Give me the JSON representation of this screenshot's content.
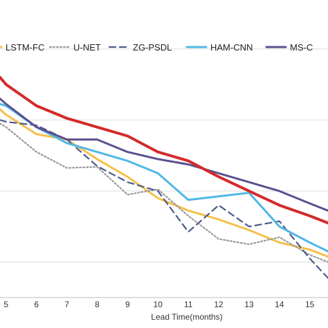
{
  "chart_data": {
    "type": "line",
    "title": "",
    "xlabel": "Lead Time(months)",
    "ylabel": "",
    "x": [
      5,
      6,
      7,
      8,
      9,
      10,
      11,
      12,
      13,
      14,
      15
    ],
    "xlim": [
      4.8,
      15.6
    ],
    "ylim": [
      0.2,
      0.96
    ],
    "grid": true,
    "legend_position": "top",
    "series": [
      {
        "name": "LSTM-FC",
        "color": "#f5c04a",
        "dash": "solid",
        "x": [
          4.8,
          5,
          6,
          7,
          8,
          9,
          10,
          11,
          12,
          13,
          14,
          15,
          15.6
        ],
        "y": [
          0.73,
          0.715,
          0.66,
          0.645,
          0.59,
          0.54,
          0.48,
          0.445,
          0.42,
          0.39,
          0.355,
          0.335,
          0.315
        ]
      },
      {
        "name": "U-NET",
        "color": "#999999",
        "dash": "dotted",
        "x": [
          4.8,
          5,
          6,
          7,
          8,
          9,
          10,
          11,
          12,
          13,
          14,
          15,
          15.6
        ],
        "y": [
          0.69,
          0.68,
          0.61,
          0.565,
          0.568,
          0.49,
          0.505,
          0.43,
          0.365,
          0.35,
          0.37,
          0.32,
          0.3
        ]
      },
      {
        "name": "ZG-PSDL",
        "color": "#4a5a8a",
        "dash": "dashed",
        "x": [
          4.8,
          5,
          6,
          7,
          8,
          9,
          10,
          11,
          12,
          13,
          14,
          15,
          15.6
        ],
        "y": [
          0.7,
          0.695,
          0.685,
          0.645,
          0.57,
          0.525,
          0.5,
          0.385,
          0.46,
          0.4,
          0.415,
          0.31,
          0.255
        ]
      },
      {
        "name": "HAM-CNN",
        "color": "#4fb8e6",
        "dash": "solid",
        "x": [
          4.8,
          5,
          6,
          7,
          8,
          9,
          10,
          11,
          12,
          13,
          14,
          15,
          15.6
        ],
        "y": [
          0.745,
          0.74,
          0.68,
          0.635,
          0.61,
          0.585,
          0.55,
          0.475,
          0.485,
          0.495,
          0.4,
          0.355,
          0.33
        ]
      },
      {
        "name": "MS-C",
        "color": "#5a5090",
        "dash": "solid",
        "x": [
          4.8,
          5,
          6,
          7,
          8,
          9,
          10,
          11,
          12,
          13,
          14,
          15,
          15.6
        ],
        "y": [
          0.76,
          0.745,
          0.68,
          0.645,
          0.645,
          0.61,
          0.59,
          0.575,
          0.55,
          0.525,
          0.5,
          0.465,
          0.445
        ]
      },
      {
        "name": "",
        "color": "#d42a2a",
        "dash": "solid",
        "x": [
          4.8,
          5,
          6,
          7,
          8,
          9,
          10,
          11,
          12,
          13,
          14,
          15,
          15.6
        ],
        "y": [
          0.82,
          0.8,
          0.74,
          0.705,
          0.68,
          0.655,
          0.61,
          0.585,
          0.54,
          0.5,
          0.46,
          0.43,
          0.41
        ]
      }
    ]
  }
}
